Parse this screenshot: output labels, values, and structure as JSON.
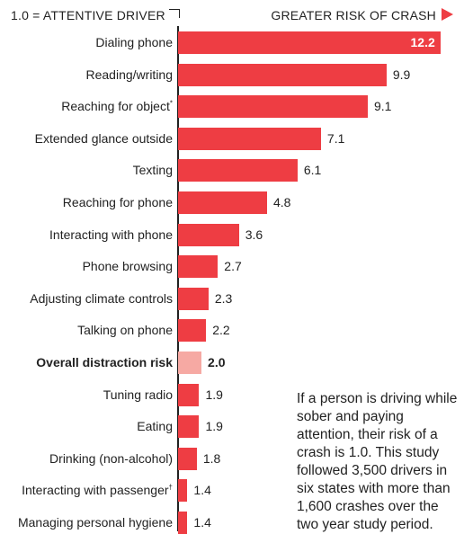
{
  "header": {
    "left_label": "1.0 = ATTENTIVE DRIVER",
    "right_label": "GREATER RISK OF CRASH"
  },
  "colors": {
    "bar": "#ee3d43",
    "highlight_bar": "#f6a9a3",
    "text": "#222222"
  },
  "chart_data": {
    "type": "bar",
    "orientation": "horizontal",
    "title": "",
    "xlabel": "",
    "ylabel": "",
    "categories": [
      "Dialing phone",
      "Reading/writing",
      "Reaching for object",
      "Extended glance outside",
      "Texting",
      "Reaching for phone",
      "Interacting with phone",
      "Phone browsing",
      "Adjusting climate controls",
      "Talking on phone",
      "Overall distraction risk",
      "Tuning radio",
      "Eating",
      "Drinking (non-alcohol)",
      "Interacting with passenger",
      "Managing personal hygiene"
    ],
    "footnote_marks": [
      "",
      "",
      "*",
      "",
      "",
      "",
      "",
      "",
      "",
      "",
      "",
      "",
      "",
      "",
      "†",
      ""
    ],
    "values": [
      12.2,
      9.9,
      9.1,
      7.1,
      6.1,
      4.8,
      3.6,
      2.7,
      2.3,
      2.2,
      2.0,
      1.9,
      1.9,
      1.8,
      1.4,
      1.4
    ],
    "value_labels": [
      "12.2",
      "9.9",
      "9.1",
      "7.1",
      "6.1",
      "4.8",
      "3.6",
      "2.7",
      "2.3",
      "2.2",
      "2.0",
      "1.9",
      "1.9",
      "1.8",
      "1.4",
      "1.4"
    ],
    "highlight_index": 10,
    "xlim": [
      1.0,
      12.9
    ],
    "grid": false,
    "legend": "none"
  },
  "note": {
    "lines": [
      "If a person is driving while",
      "sober and paying",
      "attention, their risk of a",
      "crash is 1.0. This study",
      "followed 3,500 drivers in",
      "six states with more than",
      "1,600 crashes over the",
      "two year study period."
    ]
  }
}
